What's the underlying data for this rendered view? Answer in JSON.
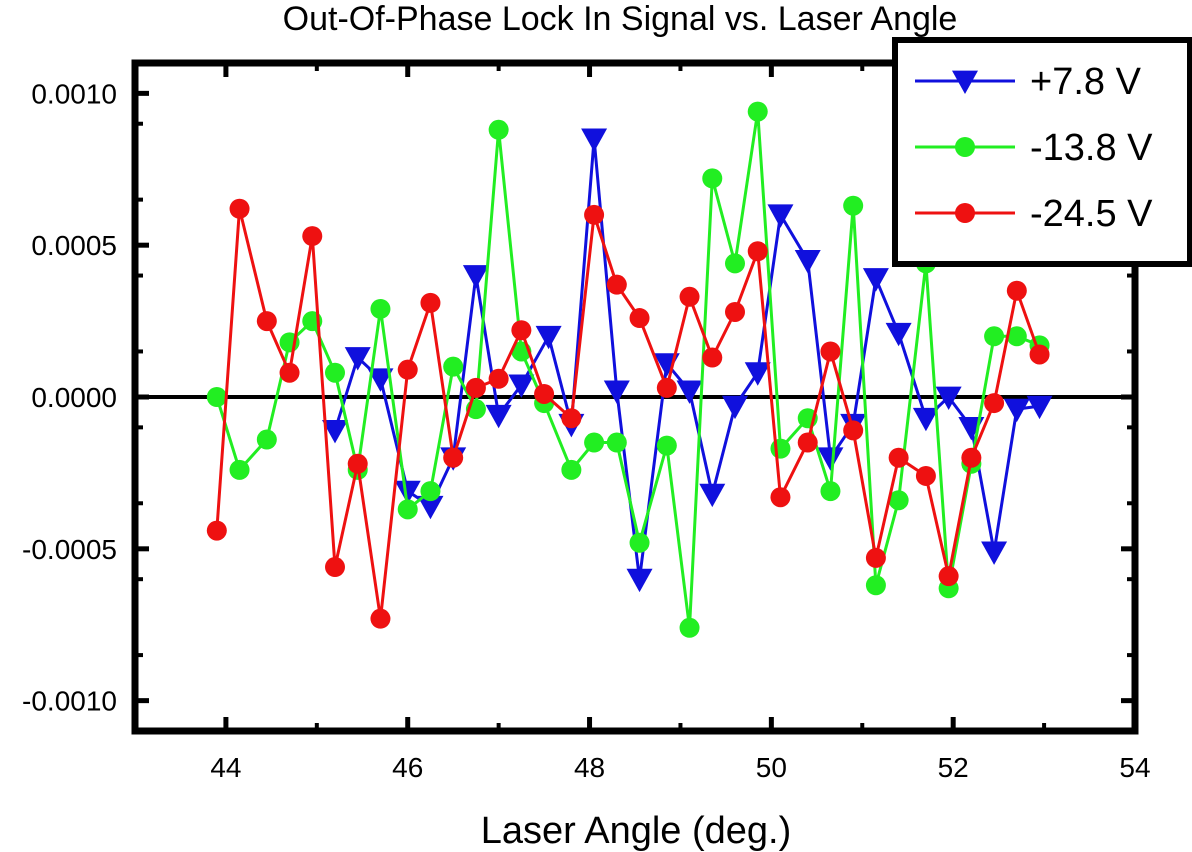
{
  "chart_data": {
    "type": "line",
    "title": "Out-Of-Phase Lock In Signal vs. Laser Angle",
    "xlabel": "Laser Angle (deg.)",
    "ylabel": "",
    "xlim": [
      43,
      54
    ],
    "ylim": [
      -0.0011,
      0.0011
    ],
    "xticks": [
      {
        "value": 44,
        "label": "44"
      },
      {
        "value": 46,
        "label": "46"
      },
      {
        "value": 48,
        "label": "48"
      },
      {
        "value": 50,
        "label": "50"
      },
      {
        "value": 52,
        "label": "52"
      },
      {
        "value": 54,
        "label": "54"
      }
    ],
    "yticks": [
      {
        "value": 0.001,
        "label": "0.0010"
      },
      {
        "value": 0.0005,
        "label": "0.0005"
      },
      {
        "value": 0.0,
        "label": "0.0000"
      },
      {
        "value": -0.0005,
        "label": "-0.0005"
      },
      {
        "value": -0.001,
        "label": "-0.0010"
      }
    ],
    "zero_line": true,
    "grid": false,
    "legend_position": "top-right",
    "series": [
      {
        "name": "+7.8 V",
        "color": "#1010dd",
        "marker": "triangle-down",
        "x": [
          45.2,
          45.45,
          45.7,
          46.0,
          46.25,
          46.5,
          46.75,
          47.0,
          47.25,
          47.55,
          47.8,
          48.05,
          48.3,
          48.55,
          48.85,
          49.1,
          49.35,
          49.6,
          49.85,
          50.1,
          50.4,
          50.65,
          50.9,
          51.15,
          51.4,
          51.7,
          51.95,
          52.2,
          52.45,
          52.7,
          52.95
        ],
        "y": [
          -0.00011,
          0.00013,
          6e-05,
          -0.00031,
          -0.00036,
          -0.0002,
          0.0004,
          -6e-05,
          4e-05,
          0.0002,
          -9e-05,
          0.00085,
          2e-05,
          -0.0006,
          0.00011,
          2e-05,
          -0.00032,
          -3e-05,
          8e-05,
          0.0006,
          0.00045,
          -0.0002,
          -9e-05,
          0.00039,
          0.00021,
          -7e-05,
          0.0,
          -0.0001,
          -0.00051,
          -4e-05,
          -3e-05
        ]
      },
      {
        "name": "-13.8 V",
        "color": "#22ee22",
        "marker": "circle",
        "x": [
          43.9,
          44.15,
          44.45,
          44.7,
          44.95,
          45.2,
          45.45,
          45.7,
          46.0,
          46.25,
          46.5,
          46.75,
          47.0,
          47.25,
          47.5,
          47.8,
          48.05,
          48.3,
          48.55,
          48.85,
          49.1,
          49.35,
          49.6,
          49.85,
          50.1,
          50.4,
          50.65,
          50.9,
          51.15,
          51.4,
          51.7,
          51.95,
          52.2,
          52.45,
          52.7,
          52.95
        ],
        "y": [
          0.0,
          -0.00024,
          -0.00014,
          0.00018,
          0.00025,
          8e-05,
          -0.00024,
          0.00029,
          -0.00037,
          -0.00031,
          0.0001,
          -4e-05,
          0.00088,
          0.00015,
          -2e-05,
          -0.00024,
          -0.00015,
          -0.00015,
          -0.00048,
          -0.00016,
          -0.00076,
          0.00072,
          0.00044,
          0.00094,
          -0.00017,
          -7e-05,
          -0.00031,
          0.00063,
          -0.00062,
          -0.00034,
          0.00044,
          -0.00063,
          -0.00022,
          0.0002,
          0.0002,
          0.00017
        ]
      },
      {
        "name": "-24.5 V",
        "color": "#ee1111",
        "marker": "circle",
        "x": [
          43.9,
          44.15,
          44.45,
          44.7,
          44.95,
          45.2,
          45.45,
          45.7,
          46.0,
          46.25,
          46.5,
          46.75,
          47.0,
          47.25,
          47.5,
          47.8,
          48.05,
          48.3,
          48.55,
          48.85,
          49.1,
          49.35,
          49.6,
          49.85,
          50.1,
          50.4,
          50.65,
          50.9,
          51.15,
          51.4,
          51.7,
          51.95,
          52.2,
          52.45,
          52.7,
          52.95
        ],
        "y": [
          -0.00044,
          0.00062,
          0.00025,
          8e-05,
          0.00053,
          -0.00056,
          -0.00022,
          -0.00073,
          9e-05,
          0.00031,
          -0.0002,
          3e-05,
          6e-05,
          0.00022,
          1e-05,
          -7e-05,
          0.0006,
          0.00037,
          0.00026,
          3e-05,
          0.00033,
          0.00013,
          0.00028,
          0.00048,
          -0.00033,
          -0.00015,
          0.00015,
          -0.00011,
          -0.00053,
          -0.0002,
          -0.00026,
          -0.00059,
          -0.0002,
          -2e-05,
          0.00035,
          0.00014
        ]
      }
    ]
  }
}
